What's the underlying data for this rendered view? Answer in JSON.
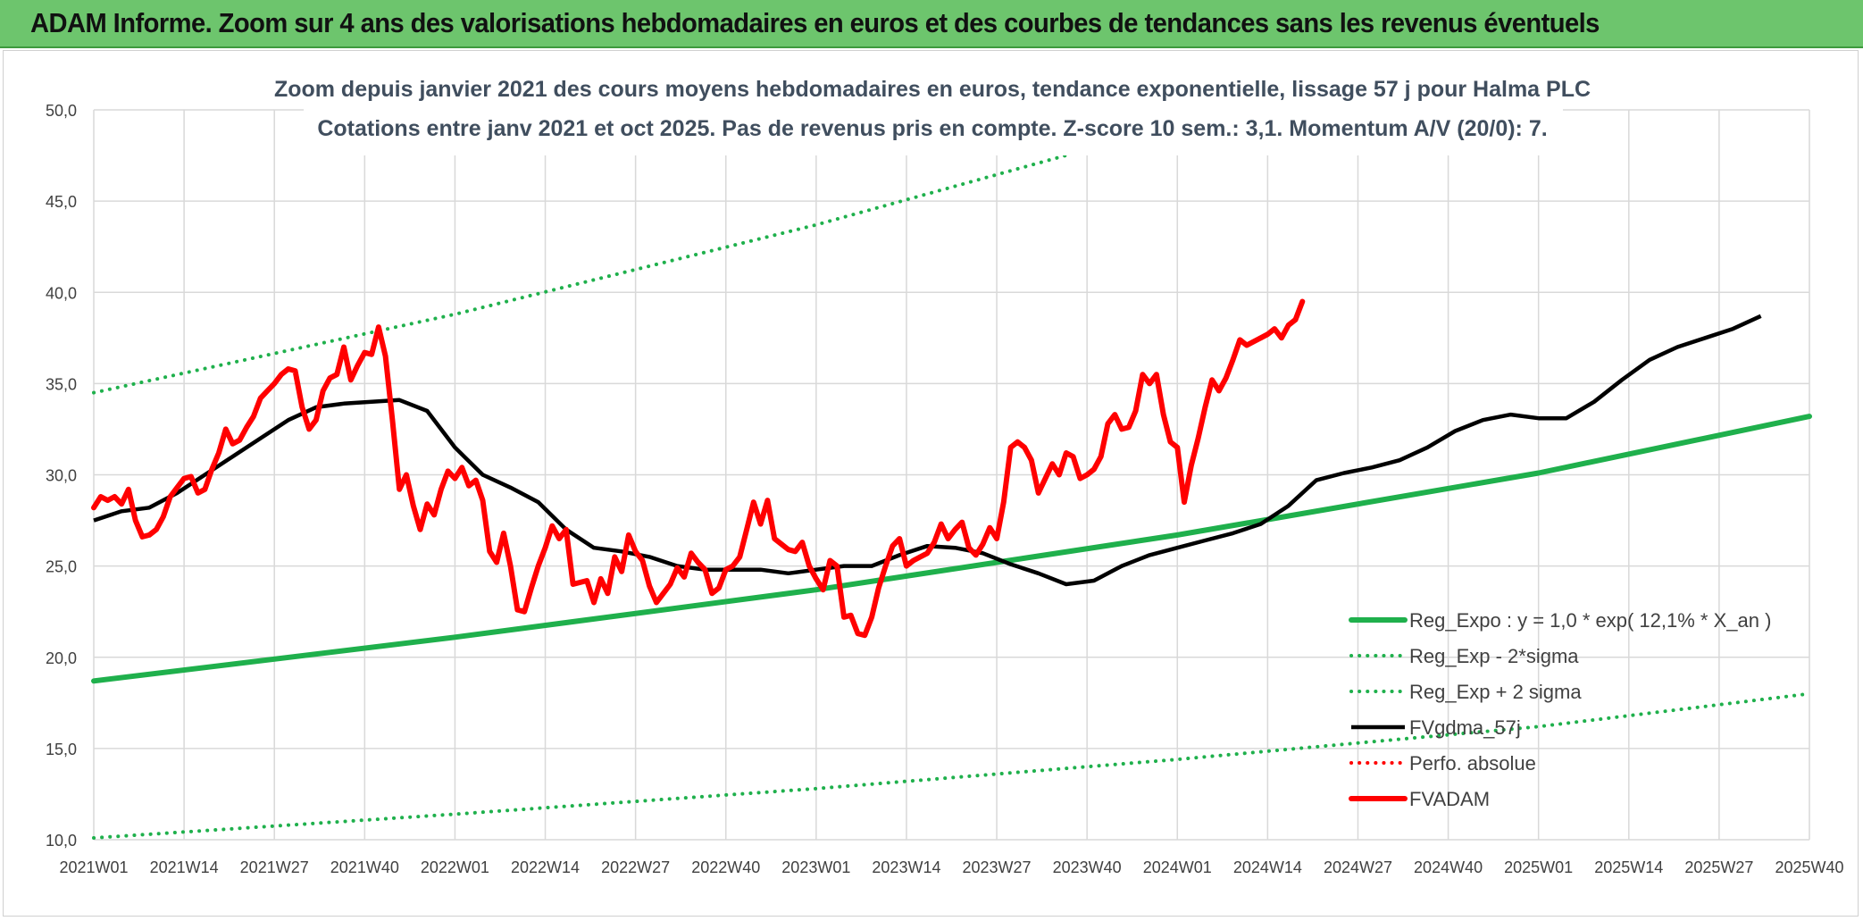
{
  "banner": {
    "title": "ADAM Informe. Zoom sur 4 ans des valorisations hebdomadaires en euros et des courbes de tendances sans les revenus éventuels"
  },
  "colors": {
    "banner_bg": "#6dc56d",
    "trend": "#1fb04c",
    "price": "#ff0000",
    "smooth": "#000000",
    "grid": "#d9d9d9"
  },
  "chart_data": {
    "type": "line",
    "title": "Zoom depuis janvier 2021 des cours moyens hebdomadaires en euros, tendance exponentielle, lissage 57 j pour Halma PLC",
    "subtitle": "Cotations entre janv 2021 et oct 2025. Pas de revenus pris en compte. Z-score 10 sem.: 3,1. Momentum A/V (20/0): 7.",
    "xlabel": "",
    "ylabel": "",
    "ylim": [
      10,
      50
    ],
    "y_ticks": [
      "10,0",
      "15,0",
      "20,0",
      "25,0",
      "30,0",
      "35,0",
      "40,0",
      "45,0",
      "50,0"
    ],
    "x_ticks": [
      "2021W01",
      "2021W14",
      "2021W27",
      "2021W40",
      "2022W01",
      "2022W14",
      "2022W27",
      "2022W40",
      "2023W01",
      "2023W14",
      "2023W27",
      "2023W40",
      "2024W01",
      "2024W14",
      "2024W27",
      "2024W40",
      "2025W01",
      "2025W14",
      "2025W27",
      "2025W40"
    ],
    "grid": true,
    "legend_position": "bottom-right",
    "series": [
      {
        "name": "Reg_Expo : y = 1,0 * exp( 12,1% *  X_an )",
        "style": "solid-thick",
        "color": "#1fb04c",
        "points": [
          [
            0,
            18.7
          ],
          [
            52,
            21.1
          ],
          [
            104,
            23.7
          ],
          [
            156,
            26.7
          ],
          [
            208,
            30.1
          ],
          [
            247,
            33.2
          ]
        ]
      },
      {
        "name": "Reg_Exp - 2*sigma",
        "style": "dotted",
        "color": "#1fb04c",
        "points": [
          [
            0,
            10.1
          ],
          [
            52,
            11.4
          ],
          [
            104,
            12.8
          ],
          [
            156,
            14.4
          ],
          [
            208,
            16.2
          ],
          [
            247,
            18.0
          ]
        ]
      },
      {
        "name": "Reg_Exp + 2 sigma",
        "style": "dotted",
        "color": "#1fb04c",
        "points": [
          [
            0,
            34.5
          ],
          [
            52,
            38.8
          ],
          [
            104,
            43.7
          ],
          [
            156,
            49.2
          ],
          [
            200,
            54.0
          ]
        ]
      },
      {
        "name": "FVgdma_57j",
        "style": "solid",
        "color": "#000000",
        "points": [
          [
            0,
            27.5
          ],
          [
            4,
            28.0
          ],
          [
            8,
            28.2
          ],
          [
            12,
            29.0
          ],
          [
            16,
            30.0
          ],
          [
            20,
            31.0
          ],
          [
            24,
            32.0
          ],
          [
            28,
            33.0
          ],
          [
            32,
            33.7
          ],
          [
            36,
            33.9
          ],
          [
            40,
            34.0
          ],
          [
            44,
            34.1
          ],
          [
            48,
            33.5
          ],
          [
            52,
            31.5
          ],
          [
            56,
            30.0
          ],
          [
            60,
            29.3
          ],
          [
            64,
            28.5
          ],
          [
            68,
            27.0
          ],
          [
            72,
            26.0
          ],
          [
            76,
            25.8
          ],
          [
            80,
            25.5
          ],
          [
            84,
            25.0
          ],
          [
            88,
            24.8
          ],
          [
            92,
            24.8
          ],
          [
            96,
            24.8
          ],
          [
            100,
            24.6
          ],
          [
            104,
            24.8
          ],
          [
            108,
            25.0
          ],
          [
            112,
            25.0
          ],
          [
            116,
            25.6
          ],
          [
            120,
            26.1
          ],
          [
            124,
            26.0
          ],
          [
            128,
            25.7
          ],
          [
            132,
            25.1
          ],
          [
            136,
            24.6
          ],
          [
            140,
            24.0
          ],
          [
            144,
            24.2
          ],
          [
            148,
            25.0
          ],
          [
            152,
            25.6
          ],
          [
            156,
            26.0
          ],
          [
            160,
            26.4
          ],
          [
            164,
            26.8
          ],
          [
            168,
            27.3
          ],
          [
            172,
            28.3
          ],
          [
            176,
            29.7
          ],
          [
            180,
            30.1
          ],
          [
            184,
            30.4
          ],
          [
            188,
            30.8
          ],
          [
            192,
            31.5
          ],
          [
            196,
            32.4
          ],
          [
            200,
            33.0
          ],
          [
            204,
            33.3
          ],
          [
            208,
            33.1
          ],
          [
            212,
            33.1
          ],
          [
            216,
            34.0
          ],
          [
            220,
            35.2
          ],
          [
            224,
            36.3
          ],
          [
            228,
            37.0
          ],
          [
            232,
            37.5
          ],
          [
            236,
            38.0
          ],
          [
            240,
            38.7
          ]
        ]
      },
      {
        "name": "Perfo. absolue",
        "style": "dotted",
        "color": "#ff0000",
        "points": []
      },
      {
        "name": "FVADAM",
        "style": "solid-thick",
        "color": "#ff0000",
        "points": [
          [
            0,
            28.2
          ],
          [
            1,
            28.8
          ],
          [
            2,
            28.6
          ],
          [
            3,
            28.8
          ],
          [
            4,
            28.4
          ],
          [
            5,
            29.2
          ],
          [
            6,
            27.5
          ],
          [
            7,
            26.6
          ],
          [
            8,
            26.7
          ],
          [
            9,
            27.0
          ],
          [
            10,
            27.7
          ],
          [
            11,
            28.8
          ],
          [
            12,
            29.3
          ],
          [
            13,
            29.8
          ],
          [
            14,
            29.9
          ],
          [
            15,
            29.0
          ],
          [
            16,
            29.2
          ],
          [
            17,
            30.3
          ],
          [
            18,
            31.2
          ],
          [
            19,
            32.5
          ],
          [
            20,
            31.7
          ],
          [
            21,
            31.9
          ],
          [
            22,
            32.6
          ],
          [
            23,
            33.2
          ],
          [
            24,
            34.2
          ],
          [
            25,
            34.6
          ],
          [
            26,
            35.0
          ],
          [
            27,
            35.5
          ],
          [
            28,
            35.8
          ],
          [
            29,
            35.7
          ],
          [
            30,
            33.7
          ],
          [
            31,
            32.5
          ],
          [
            32,
            33.0
          ],
          [
            33,
            34.6
          ],
          [
            34,
            35.3
          ],
          [
            35,
            35.5
          ],
          [
            36,
            37.0
          ],
          [
            37,
            35.2
          ],
          [
            38,
            36.0
          ],
          [
            39,
            36.7
          ],
          [
            40,
            36.6
          ],
          [
            41,
            38.1
          ],
          [
            42,
            36.5
          ],
          [
            43,
            33.0
          ],
          [
            44,
            29.2
          ],
          [
            45,
            30.0
          ],
          [
            46,
            28.3
          ],
          [
            47,
            27.0
          ],
          [
            48,
            28.4
          ],
          [
            49,
            27.8
          ],
          [
            50,
            29.2
          ],
          [
            51,
            30.2
          ],
          [
            52,
            29.8
          ],
          [
            53,
            30.4
          ],
          [
            54,
            29.4
          ],
          [
            55,
            29.7
          ],
          [
            56,
            28.6
          ],
          [
            57,
            25.8
          ],
          [
            58,
            25.2
          ],
          [
            59,
            26.8
          ],
          [
            60,
            25.0
          ],
          [
            61,
            22.6
          ],
          [
            62,
            22.5
          ],
          [
            63,
            23.8
          ],
          [
            64,
            25.0
          ],
          [
            65,
            26.0
          ],
          [
            66,
            27.2
          ],
          [
            67,
            26.5
          ],
          [
            68,
            27.0
          ],
          [
            69,
            24.0
          ],
          [
            70,
            24.1
          ],
          [
            71,
            24.2
          ],
          [
            72,
            23.0
          ],
          [
            73,
            24.3
          ],
          [
            74,
            23.5
          ],
          [
            75,
            25.5
          ],
          [
            76,
            24.7
          ],
          [
            77,
            26.7
          ],
          [
            78,
            25.8
          ],
          [
            79,
            25.3
          ],
          [
            80,
            23.9
          ],
          [
            81,
            23.0
          ],
          [
            82,
            23.5
          ],
          [
            83,
            24.0
          ],
          [
            84,
            24.9
          ],
          [
            85,
            24.4
          ],
          [
            86,
            25.7
          ],
          [
            87,
            25.2
          ],
          [
            88,
            24.8
          ],
          [
            89,
            23.5
          ],
          [
            90,
            23.8
          ],
          [
            91,
            24.8
          ],
          [
            92,
            25.0
          ],
          [
            93,
            25.5
          ],
          [
            94,
            27.0
          ],
          [
            95,
            28.5
          ],
          [
            96,
            27.3
          ],
          [
            97,
            28.6
          ],
          [
            98,
            26.5
          ],
          [
            99,
            26.2
          ],
          [
            100,
            25.9
          ],
          [
            101,
            25.8
          ],
          [
            102,
            26.3
          ],
          [
            103,
            25.0
          ],
          [
            104,
            24.3
          ],
          [
            105,
            23.7
          ],
          [
            106,
            25.3
          ],
          [
            107,
            25.0
          ],
          [
            108,
            22.2
          ],
          [
            109,
            22.3
          ],
          [
            110,
            21.3
          ],
          [
            111,
            21.2
          ],
          [
            112,
            22.2
          ],
          [
            113,
            23.8
          ],
          [
            114,
            25.0
          ],
          [
            115,
            26.1
          ],
          [
            116,
            26.5
          ],
          [
            117,
            25.0
          ],
          [
            118,
            25.3
          ],
          [
            119,
            25.5
          ],
          [
            120,
            25.7
          ],
          [
            121,
            26.3
          ],
          [
            122,
            27.3
          ],
          [
            123,
            26.5
          ],
          [
            124,
            27.0
          ],
          [
            125,
            27.4
          ],
          [
            126,
            26.0
          ],
          [
            127,
            25.6
          ],
          [
            128,
            26.2
          ],
          [
            129,
            27.1
          ],
          [
            130,
            26.5
          ],
          [
            131,
            28.5
          ],
          [
            132,
            31.5
          ],
          [
            133,
            31.8
          ],
          [
            134,
            31.5
          ],
          [
            135,
            30.8
          ],
          [
            136,
            29.0
          ],
          [
            137,
            29.8
          ],
          [
            138,
            30.6
          ],
          [
            139,
            30.0
          ],
          [
            140,
            31.2
          ],
          [
            141,
            31.0
          ],
          [
            142,
            29.8
          ],
          [
            143,
            30.0
          ],
          [
            144,
            30.3
          ],
          [
            145,
            31.0
          ],
          [
            146,
            32.8
          ],
          [
            147,
            33.3
          ],
          [
            148,
            32.5
          ],
          [
            149,
            32.6
          ],
          [
            150,
            33.5
          ],
          [
            151,
            35.5
          ],
          [
            152,
            35.0
          ],
          [
            153,
            35.5
          ],
          [
            154,
            33.3
          ],
          [
            155,
            31.8
          ],
          [
            156,
            31.5
          ],
          [
            157,
            28.5
          ],
          [
            158,
            30.5
          ],
          [
            159,
            32.0
          ],
          [
            160,
            33.7
          ],
          [
            161,
            35.2
          ],
          [
            162,
            34.6
          ],
          [
            163,
            35.3
          ],
          [
            164,
            36.3
          ],
          [
            165,
            37.4
          ],
          [
            166,
            37.1
          ],
          [
            167,
            37.3
          ],
          [
            168,
            37.5
          ],
          [
            169,
            37.7
          ],
          [
            170,
            38.0
          ],
          [
            171,
            37.5
          ],
          [
            172,
            38.2
          ],
          [
            173,
            38.5
          ],
          [
            174,
            39.5
          ]
        ]
      }
    ]
  }
}
